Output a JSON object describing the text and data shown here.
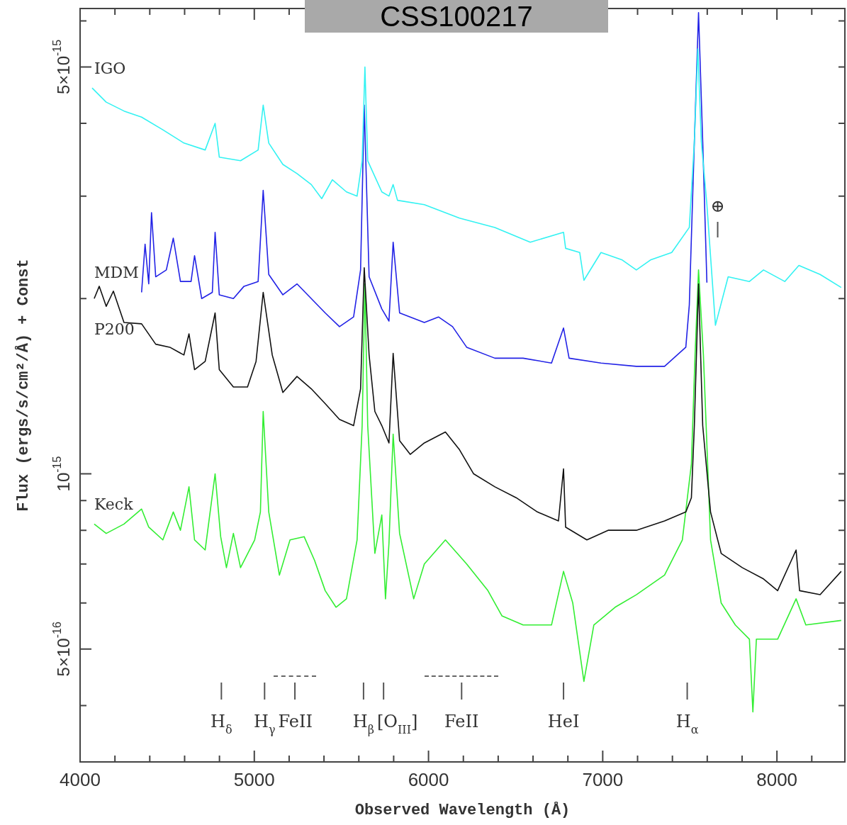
{
  "chart_data": {
    "type": "line",
    "title": "CSS100217",
    "xlabel": "Observed Wavelength (Å)",
    "ylabel": "Flux (ergs/s/cm²/Å) + Const",
    "log": "y",
    "marker": "none",
    "legend": false,
    "xlim": [
      4000,
      8390
    ],
    "ylim": [
      3.2e-16,
      6.3e-15
    ],
    "xticks": [
      4000,
      {
        "value": 4200,
        "label": null
      },
      {
        "value": 4400,
        "label": null
      },
      {
        "value": 4600,
        "label": null
      },
      {
        "value": 4800,
        "label": null
      },
      5000,
      {
        "value": 5200,
        "label": null
      },
      {
        "value": 5400,
        "label": null
      },
      {
        "value": 5600,
        "label": null
      },
      {
        "value": 5800,
        "label": null
      },
      6000,
      {
        "value": 6200,
        "label": null
      },
      {
        "value": 6400,
        "label": null
      },
      {
        "value": 6600,
        "label": null
      },
      {
        "value": 6800,
        "label": null
      },
      7000,
      {
        "value": 7200,
        "label": null
      },
      {
        "value": 7400,
        "label": null
      },
      {
        "value": 7600,
        "label": null
      },
      {
        "value": 7800,
        "label": null
      },
      8000,
      {
        "value": 8200,
        "label": null
      }
    ],
    "yticks": [
      {
        "value": 6e-15,
        "label": null
      },
      {
        "value": 5e-15,
        "label": "5×10$^{-15}$"
      },
      {
        "value": 4e-15,
        "label": null
      },
      {
        "value": 3e-15,
        "label": null
      },
      {
        "value": 2e-15,
        "label": null
      },
      {
        "value": 1e-15,
        "label": "10$^{-15}$"
      },
      {
        "value": 9e-16,
        "label": null
      },
      {
        "value": 8e-16,
        "label": null
      },
      {
        "value": 7e-16,
        "label": null
      },
      {
        "value": 6e-16,
        "label": null
      },
      {
        "value": 5e-16,
        "label": "5×10$^{-16}$"
      },
      {
        "value": 4e-16,
        "label": null
      }
    ],
    "series": [
      {
        "name": "IGO",
        "color": "#33f2f2",
        "x": [
          4069,
          4150,
          4252,
          4353,
          4475,
          4596,
          4718,
          4775,
          4799,
          4921,
          5022,
          5051,
          5083,
          5164,
          5245,
          5327,
          5387,
          5448,
          5529,
          5590,
          5619,
          5635,
          5651,
          5732,
          5773,
          5797,
          5822,
          5976,
          6178,
          6381,
          6584,
          6775,
          6787,
          6868,
          6892,
          6990,
          7112,
          7193,
          7274,
          7396,
          7497,
          7526,
          7546,
          7566,
          7598,
          7647,
          7720,
          7842,
          7923,
          8045,
          8126,
          8248,
          8369
        ],
        "values": [
          4.6e-15,
          4.35e-15,
          4.2e-15,
          4.1e-15,
          3.9e-15,
          3.7e-15,
          3.6e-15,
          4e-15,
          3.5e-15,
          3.45e-15,
          3.6e-15,
          4.3e-15,
          3.7e-15,
          3.4e-15,
          3.28e-15,
          3.14e-15,
          2.97e-15,
          3.2e-15,
          3.05e-15,
          3e-15,
          3.45e-15,
          5e-15,
          3.45e-15,
          3.05e-15,
          3e-15,
          3.14e-15,
          2.95e-15,
          2.9e-15,
          2.75e-15,
          2.65e-15,
          2.5e-15,
          2.6e-15,
          2.44e-15,
          2.4e-15,
          2.15e-15,
          2.4e-15,
          2.33e-15,
          2.24e-15,
          2.33e-15,
          2.4e-15,
          2.65e-15,
          3.72e-15,
          5.37e-15,
          3.72e-15,
          2.9e-15,
          1.8e-15,
          2.18e-15,
          2.14e-15,
          2.24e-15,
          2.14e-15,
          2.28e-15,
          2.2e-15,
          2.09e-15
        ]
      },
      {
        "name": "MDM",
        "color": "#2222e6",
        "x": [
          4353,
          4373,
          4394,
          4410,
          4434,
          4495,
          4535,
          4576,
          4637,
          4657,
          4698,
          4759,
          4775,
          4799,
          4880,
          4941,
          5022,
          5051,
          5083,
          5164,
          5245,
          5327,
          5407,
          5489,
          5570,
          5610,
          5631,
          5659,
          5732,
          5773,
          5797,
          5834,
          5976,
          6057,
          6138,
          6219,
          6381,
          6543,
          6706,
          6775,
          6807,
          6990,
          7193,
          7355,
          7477,
          7497,
          7526,
          7550,
          7574,
          7598
        ],
        "values": [
          2.05e-15,
          2.48e-15,
          2.12e-15,
          2.81e-15,
          2.18e-15,
          2.24e-15,
          2.54e-15,
          2.14e-15,
          2.14e-15,
          2.37e-15,
          2e-15,
          2.05e-15,
          2.6e-15,
          2.03e-15,
          2e-15,
          2.1e-15,
          2.14e-15,
          3.07e-15,
          2.2e-15,
          2.03e-15,
          2.12e-15,
          2e-15,
          1.89e-15,
          1.79e-15,
          1.86e-15,
          2.24e-15,
          4.3e-15,
          2.18e-15,
          1.92e-15,
          1.83e-15,
          2.5e-15,
          1.89e-15,
          1.82e-15,
          1.86e-15,
          1.79e-15,
          1.65e-15,
          1.58e-15,
          1.58e-15,
          1.55e-15,
          1.78e-15,
          1.58e-15,
          1.55e-15,
          1.53e-15,
          1.53e-15,
          1.65e-15,
          1.95e-15,
          3.72e-15,
          6.2e-15,
          3.72e-15,
          2.13e-15
        ]
      },
      {
        "name": "P200",
        "color": "#111111",
        "x": [
          4081,
          4110,
          4150,
          4191,
          4252,
          4353,
          4434,
          4515,
          4596,
          4625,
          4657,
          4718,
          4775,
          4799,
          4880,
          4961,
          5010,
          5051,
          5103,
          5164,
          5245,
          5327,
          5407,
          5489,
          5570,
          5610,
          5631,
          5659,
          5692,
          5732,
          5773,
          5797,
          5834,
          5895,
          5976,
          6097,
          6178,
          6259,
          6381,
          6503,
          6625,
          6746,
          6775,
          6787,
          6909,
          7031,
          7193,
          7355,
          7477,
          7509,
          7526,
          7550,
          7574,
          7619,
          7680,
          7801,
          7923,
          8004,
          8110,
          8130,
          8248,
          8369
        ],
        "values": [
          2e-15,
          2.1e-15,
          1.94e-15,
          2.06e-15,
          1.82e-15,
          1.81e-15,
          1.67e-15,
          1.65e-15,
          1.6e-15,
          1.74e-15,
          1.51e-15,
          1.56e-15,
          1.89e-15,
          1.51e-15,
          1.41e-15,
          1.41e-15,
          1.56e-15,
          2.05e-15,
          1.6e-15,
          1.38e-15,
          1.47e-15,
          1.4e-15,
          1.32e-15,
          1.24e-15,
          1.21e-15,
          1.4e-15,
          2.26e-15,
          1.6e-15,
          1.28e-15,
          1.21e-15,
          1.13e-15,
          1.61e-15,
          1.14e-15,
          1.08e-15,
          1.13e-15,
          1.18e-15,
          1.1e-15,
          1e-15,
          9.5e-16,
          9.1e-16,
          8.6e-16,
          8.3e-16,
          1.02e-15,
          8.1e-16,
          7.7e-16,
          8e-16,
          8e-16,
          8.3e-16,
          8.6e-16,
          9.1e-16,
          1.21e-15,
          2.12e-15,
          1.21e-15,
          8.6e-16,
          7.3e-16,
          6.9e-16,
          6.6e-16,
          6.3e-16,
          7.4e-16,
          6.3e-16,
          6.2e-16,
          6.8e-16
        ]
      },
      {
        "name": "Keck",
        "color": "#33ee33",
        "x": [
          4081,
          4150,
          4252,
          4353,
          4394,
          4475,
          4535,
          4576,
          4625,
          4657,
          4718,
          4775,
          4807,
          4840,
          4880,
          4921,
          5002,
          5035,
          5051,
          5083,
          5144,
          5205,
          5286,
          5346,
          5407,
          5469,
          5529,
          5590,
          5619,
          5635,
          5651,
          5692,
          5732,
          5753,
          5773,
          5797,
          5834,
          5915,
          5976,
          6097,
          6219,
          6341,
          6422,
          6543,
          6706,
          6775,
          6828,
          6892,
          6949,
          7071,
          7193,
          7355,
          7457,
          7509,
          7530,
          7550,
          7578,
          7619,
          7680,
          7761,
          7842,
          7862,
          7882,
          8004,
          8110,
          8166,
          8369
        ],
        "values": [
          8.2e-16,
          7.9e-16,
          8.2e-16,
          8.7e-16,
          8.1e-16,
          7.7e-16,
          8.6e-16,
          8e-16,
          9.5e-16,
          7.7e-16,
          7.4e-16,
          1e-15,
          7.8e-16,
          6.9e-16,
          7.9e-16,
          6.9e-16,
          7.7e-16,
          8.6e-16,
          1.28e-15,
          8.6e-16,
          6.7e-16,
          7.7e-16,
          7.8e-16,
          7.1e-16,
          6.3e-16,
          5.9e-16,
          6.1e-16,
          7.7e-16,
          1.21e-15,
          2.12e-15,
          1.21e-15,
          7.3e-16,
          8.5e-16,
          6.1e-16,
          7.6e-16,
          1.17e-15,
          7.9e-16,
          6.1e-16,
          7e-16,
          7.7e-16,
          7e-16,
          6.3e-16,
          5.7e-16,
          5.5e-16,
          5.5e-16,
          6.8e-16,
          6e-16,
          4.4e-16,
          5.5e-16,
          5.9e-16,
          6.2e-16,
          6.7e-16,
          7.7e-16,
          1.04e-15,
          1.6e-15,
          2.24e-15,
          1.6e-15,
          7.7e-16,
          6e-16,
          5.5e-16,
          5.2e-16,
          3.9e-16,
          5.2e-16,
          5.2e-16,
          6.1e-16,
          5.5e-16,
          5.6e-16
        ]
      }
    ],
    "annotations": [
      "⊕"
    ],
    "ref_lines": [
      {
        "axis": "x",
        "value": 4811,
        "label": "H$_{δ}$"
      },
      {
        "axis": "x",
        "value": 5059,
        "label": "H$_{γ}$"
      },
      {
        "axis": "x",
        "value": 5233,
        "label": "FeII"
      },
      {
        "axis": "x",
        "value": 5627,
        "label": "H$_{β}$"
      },
      {
        "axis": "x",
        "value": 5742,
        "label": "[O$_{III}$]"
      },
      {
        "axis": "x",
        "value": 6190,
        "label": "FeII"
      },
      {
        "axis": "x",
        "value": 6775,
        "label": "HeI"
      },
      {
        "axis": "x",
        "value": 7485,
        "label": "H$_{α}$"
      }
    ]
  }
}
